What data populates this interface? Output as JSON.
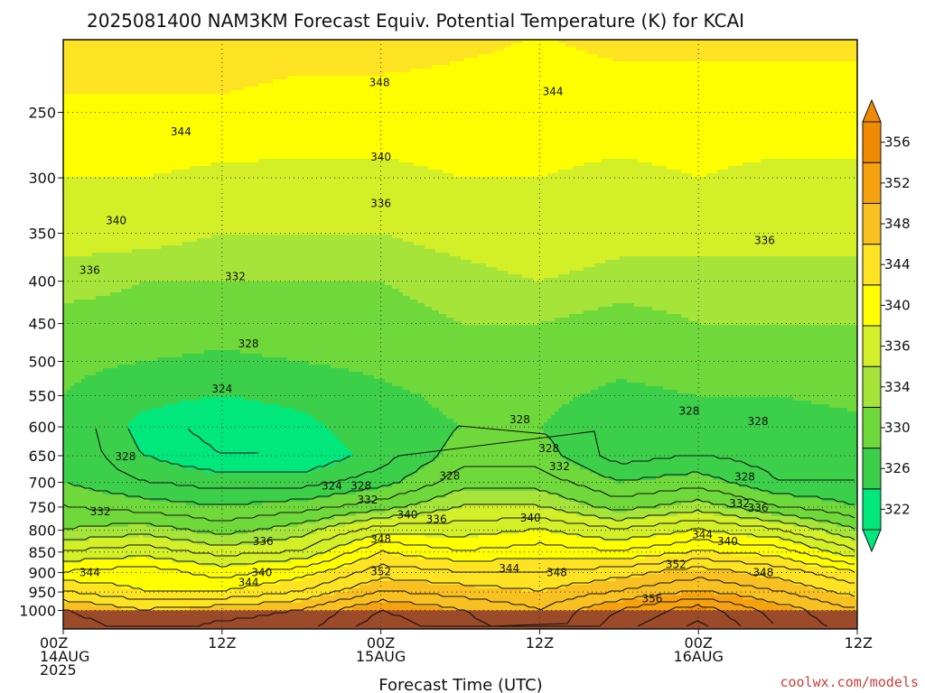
{
  "title": "2025081400 NAM3KM Forecast Equiv. Potential Temperature (K) for KCAI",
  "credit": "coolwx.com/models",
  "colors": {
    "ground": "#9b4a2a",
    "contour": "#111111",
    "grid": "#333333"
  },
  "chart_data": {
    "type": "heatmap",
    "title": "2025081400 NAM3KM Forecast Equiv. Potential Temperature (K) for KCAI",
    "xlabel": "Forecast Time (UTC)",
    "ylabel": "",
    "x_unit": "forecast hour",
    "xlim": [
      0,
      60
    ],
    "y_scale": "log (pressure, hPa)",
    "ylim": [
      1010,
      200
    ],
    "x_ticks": [
      {
        "hour": 0,
        "lines": [
          "00Z",
          "14AUG",
          "2025"
        ]
      },
      {
        "hour": 12,
        "lines": [
          "12Z"
        ]
      },
      {
        "hour": 24,
        "lines": [
          "00Z",
          "15AUG"
        ]
      },
      {
        "hour": 36,
        "lines": [
          "12Z"
        ]
      },
      {
        "hour": 48,
        "lines": [
          "00Z",
          "16AUG"
        ]
      },
      {
        "hour": 60,
        "lines": [
          "12Z"
        ]
      }
    ],
    "y_ticks": [
      250,
      300,
      350,
      400,
      450,
      500,
      550,
      600,
      650,
      700,
      750,
      800,
      850,
      900,
      950,
      1000
    ],
    "grid": true,
    "colorbar": {
      "placement": "right",
      "levels": [
        322,
        326,
        330,
        334,
        336,
        340,
        344,
        348,
        352,
        356
      ],
      "colors": [
        "#00e87c",
        "#3ccf4a",
        "#6fd83a",
        "#a6e43a",
        "#d2ef28",
        "#ffff00",
        "#fde322",
        "#f8c020",
        "#f6a10e",
        "#f08a04"
      ]
    },
    "z_label": "Equiv. Potential Temperature (K)",
    "profile_pressures": [
      1000,
      950,
      900,
      850,
      800,
      750,
      700,
      650,
      600,
      550,
      500,
      450,
      400,
      350,
      300,
      250,
      200
    ],
    "profiles": [
      {
        "hour": 0,
        "theta_e": [
          350,
          346,
          342,
          338,
          334,
          332,
          330,
          330,
          330,
          330,
          331,
          333,
          335,
          337,
          340,
          343,
          347
        ]
      },
      {
        "hour": 6,
        "theta_e": [
          348,
          344,
          343,
          339,
          335,
          331,
          328,
          326,
          325,
          327,
          330,
          333,
          334,
          337,
          340,
          343,
          347
        ]
      },
      {
        "hour": 12,
        "theta_e": [
          349,
          344,
          341,
          337,
          333,
          330,
          327,
          324,
          323,
          326,
          329,
          332,
          334,
          336,
          339,
          343,
          347
        ]
      },
      {
        "hour": 18,
        "theta_e": [
          350,
          346,
          343,
          338,
          335,
          331,
          327,
          324,
          325,
          327,
          330,
          333,
          334,
          336,
          339,
          342,
          346
        ]
      },
      {
        "hour": 24,
        "theta_e": [
          354,
          350,
          347,
          344,
          339,
          333,
          329,
          327,
          328,
          329,
          331,
          333,
          334,
          336,
          339,
          342,
          346
        ]
      },
      {
        "hour": 30,
        "theta_e": [
          352,
          349,
          346,
          342,
          339,
          336,
          333,
          331,
          330,
          331,
          333,
          334,
          335,
          337,
          340,
          342,
          345
        ]
      },
      {
        "hour": 36,
        "theta_e": [
          350,
          348,
          346,
          343,
          340,
          336,
          333,
          331,
          330,
          331,
          333,
          334,
          336,
          338,
          340,
          342,
          344
        ]
      },
      {
        "hour": 42,
        "theta_e": [
          354,
          350,
          347,
          342,
          338,
          333,
          330,
          327,
          327,
          329,
          331,
          333,
          335,
          337,
          339,
          342,
          345
        ]
      },
      {
        "hour": 48,
        "theta_e": [
          357,
          352,
          349,
          344,
          340,
          335,
          331,
          328,
          329,
          330,
          332,
          334,
          335,
          337,
          340,
          342,
          345
        ]
      },
      {
        "hour": 54,
        "theta_e": [
          353,
          350,
          347,
          343,
          338,
          332,
          328,
          327,
          328,
          330,
          332,
          334,
          335,
          337,
          339,
          342,
          345
        ]
      },
      {
        "hour": 60,
        "theta_e": [
          350,
          347,
          344,
          338,
          334,
          330,
          328,
          328,
          329,
          331,
          333,
          334,
          335,
          337,
          339,
          342,
          345
        ]
      }
    ],
    "contour_labels": [
      {
        "hour": 23.9,
        "p": 230,
        "text": "348"
      },
      {
        "hour": 37.0,
        "p": 236,
        "text": "344"
      },
      {
        "hour": 8.9,
        "p": 264,
        "text": "344"
      },
      {
        "hour": 24.0,
        "p": 283,
        "text": "340"
      },
      {
        "hour": 4.0,
        "p": 338,
        "text": "340"
      },
      {
        "hour": 24.0,
        "p": 322,
        "text": "336"
      },
      {
        "hour": 53.0,
        "p": 357,
        "text": "336"
      },
      {
        "hour": 2.0,
        "p": 388,
        "text": "336"
      },
      {
        "hour": 13.0,
        "p": 395,
        "text": "332"
      },
      {
        "hour": 14.0,
        "p": 476,
        "text": "328"
      },
      {
        "hour": 12.0,
        "p": 540,
        "text": "324"
      },
      {
        "hour": 34.5,
        "p": 588,
        "text": "328"
      },
      {
        "hour": 47.3,
        "p": 574,
        "text": "328"
      },
      {
        "hour": 52.5,
        "p": 591,
        "text": "328"
      },
      {
        "hour": 4.7,
        "p": 652,
        "text": "328"
      },
      {
        "hour": 36.7,
        "p": 637,
        "text": "328"
      },
      {
        "hour": 29.2,
        "p": 688,
        "text": "328"
      },
      {
        "hour": 37.5,
        "p": 670,
        "text": "332"
      },
      {
        "hour": 20.3,
        "p": 707,
        "text": "324"
      },
      {
        "hour": 22.5,
        "p": 707,
        "text": "328"
      },
      {
        "hour": 51.5,
        "p": 690,
        "text": "328"
      },
      {
        "hour": 23.0,
        "p": 735,
        "text": "332"
      },
      {
        "hour": 2.8,
        "p": 760,
        "text": "332"
      },
      {
        "hour": 51.1,
        "p": 743,
        "text": "332"
      },
      {
        "hour": 52.5,
        "p": 752,
        "text": "336"
      },
      {
        "hour": 28.2,
        "p": 776,
        "text": "336"
      },
      {
        "hour": 26.0,
        "p": 766,
        "text": "340"
      },
      {
        "hour": 35.3,
        "p": 773,
        "text": "340"
      },
      {
        "hour": 15.1,
        "p": 825,
        "text": "336"
      },
      {
        "hour": 24.0,
        "p": 820,
        "text": "348"
      },
      {
        "hour": 48.3,
        "p": 810,
        "text": "344"
      },
      {
        "hour": 50.2,
        "p": 825,
        "text": "340"
      },
      {
        "hour": 2.0,
        "p": 900,
        "text": "344"
      },
      {
        "hour": 15.0,
        "p": 900,
        "text": "340"
      },
      {
        "hour": 14.0,
        "p": 925,
        "text": "344"
      },
      {
        "hour": 24.0,
        "p": 898,
        "text": "352"
      },
      {
        "hour": 33.7,
        "p": 890,
        "text": "344"
      },
      {
        "hour": 37.3,
        "p": 900,
        "text": "348"
      },
      {
        "hour": 46.3,
        "p": 880,
        "text": "352"
      },
      {
        "hour": 52.9,
        "p": 900,
        "text": "348"
      },
      {
        "hour": 44.5,
        "p": 968,
        "text": "356"
      }
    ]
  }
}
